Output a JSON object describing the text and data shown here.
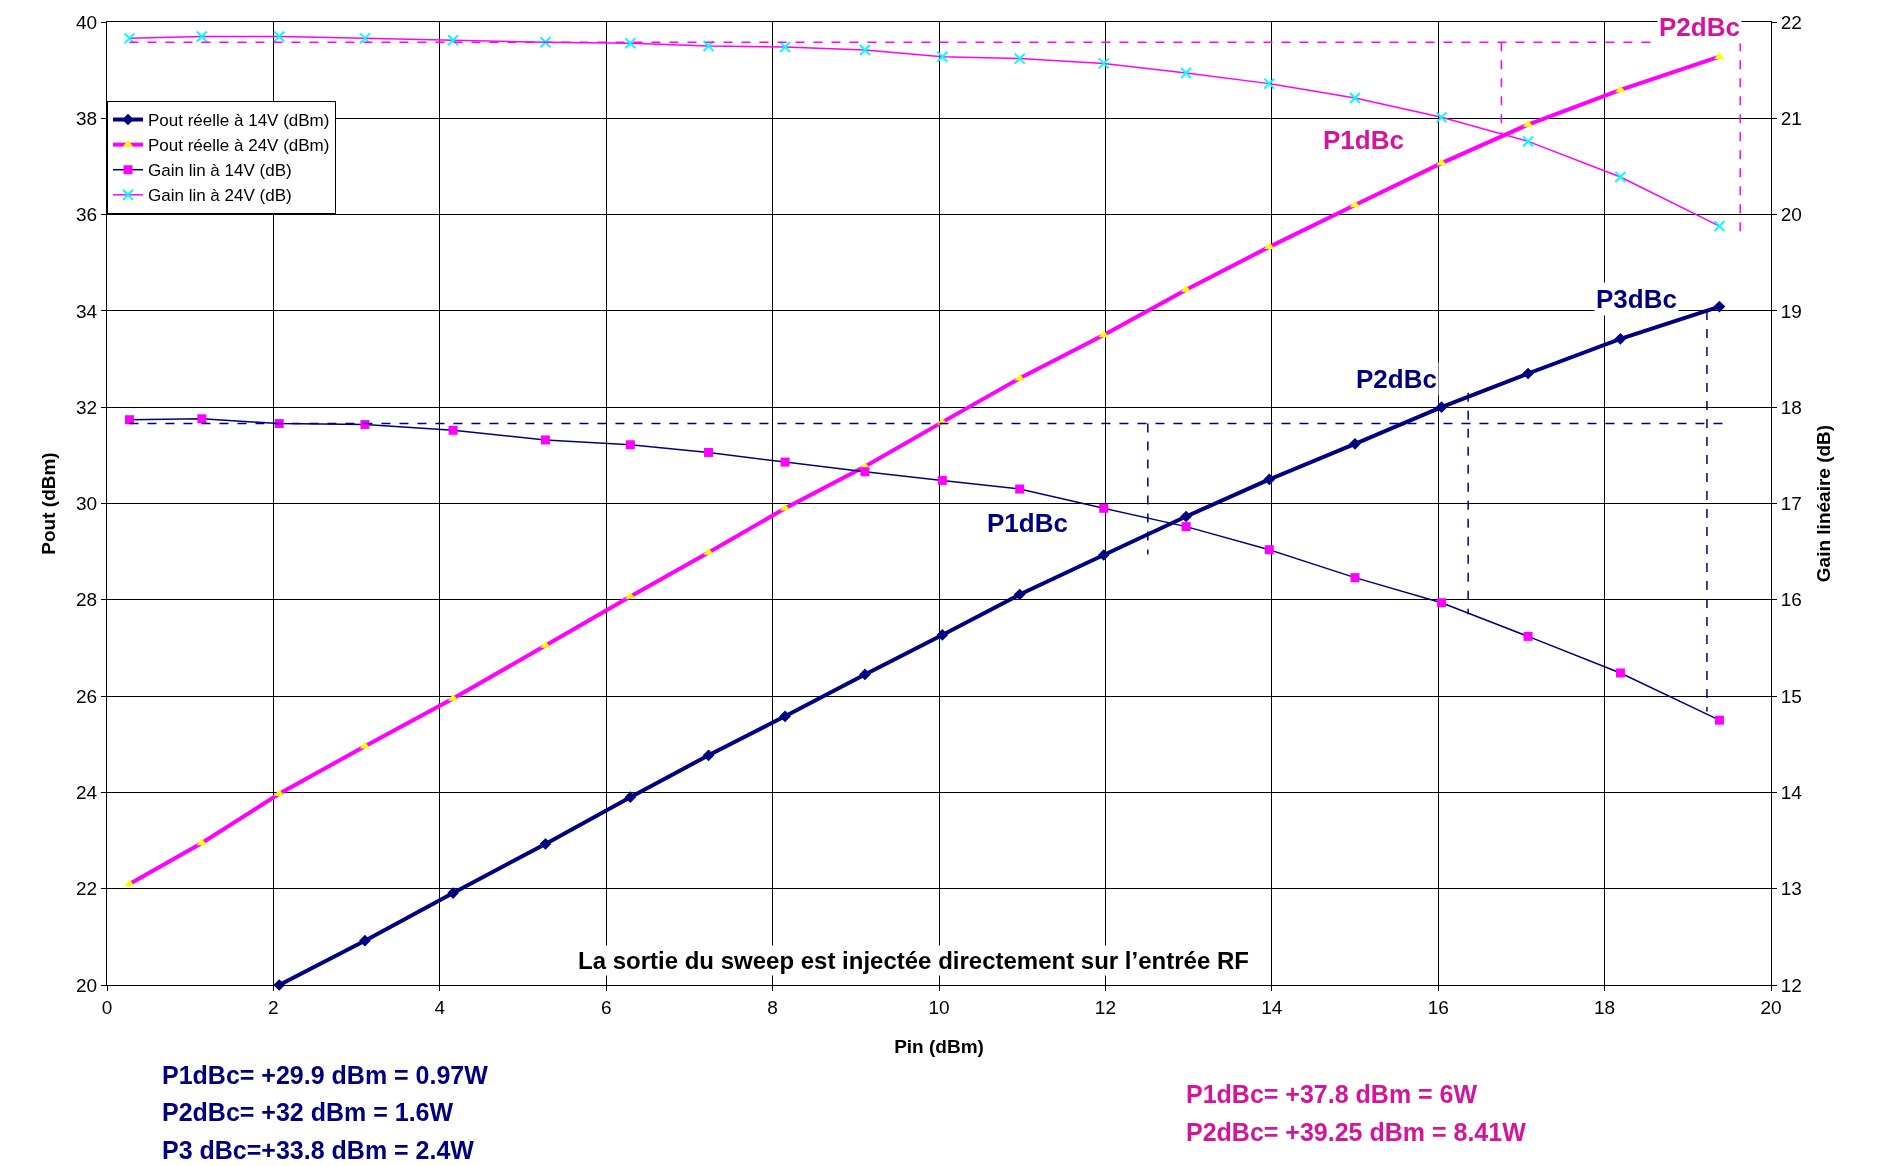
{
  "chart_data": {
    "type": "line",
    "xlabel": "Pin (dBm)",
    "ylabel": "Pout (dBm)",
    "y2label": "Gain linéaire (dB)",
    "x": [
      0.27,
      1.14,
      2.07,
      3.1,
      4.16,
      5.27,
      6.29,
      7.23,
      8.15,
      9.11,
      10.04,
      10.97,
      11.98,
      12.97,
      13.97,
      15.0,
      16.04,
      17.08,
      18.19,
      19.38
    ],
    "series": [
      {
        "name": "Pout réelle à 14V (dBm)",
        "color": "#000080",
        "marker": "diamond",
        "x": [
          2.07,
          3.1,
          4.16,
          5.27,
          6.29,
          7.23,
          8.15,
          9.11,
          10.04,
          10.97,
          11.98,
          12.97,
          13.97,
          15.0,
          16.04,
          17.08,
          18.19,
          19.38
        ],
        "values": [
          20.0,
          20.92,
          21.91,
          22.93,
          23.9,
          24.77,
          25.58,
          26.45,
          27.27,
          28.11,
          28.93,
          29.73,
          30.5,
          31.24,
          32.0,
          32.7,
          33.42,
          34.09
        ]
      },
      {
        "name": "Pout réelle à 24V (dBm)",
        "color": "#ff00ff",
        "marker": "triangle",
        "values": [
          22.1,
          22.95,
          23.97,
          24.96,
          25.95,
          27.05,
          28.07,
          28.98,
          29.9,
          30.77,
          31.69,
          32.6,
          33.5,
          34.44,
          35.33,
          36.2,
          37.07,
          37.87,
          38.59,
          39.28
        ]
      },
      {
        "name": "Gain lin à 14V (dB)",
        "color": "#000080",
        "marker": "square",
        "axis": "y2",
        "values": [
          17.87,
          17.88,
          17.83,
          17.82,
          17.76,
          17.66,
          17.61,
          17.53,
          17.43,
          17.33,
          17.24,
          17.15,
          16.95,
          16.76,
          16.52,
          16.23,
          15.97,
          15.62,
          15.24,
          14.75
        ]
      },
      {
        "name": "Gain lin à 24V (dB)",
        "color": "#ff00ff",
        "marker": "cross",
        "axis": "y2",
        "values": [
          21.83,
          21.85,
          21.85,
          21.83,
          21.81,
          21.79,
          21.78,
          21.75,
          21.74,
          21.71,
          21.64,
          21.62,
          21.57,
          21.47,
          21.36,
          21.21,
          21.01,
          20.76,
          20.39,
          19.88
        ]
      },
      {
        "color": "#000080",
        "axis": "y2",
        "line_style": "dashed",
        "marker": "none",
        "x": [
          0.27,
          19.45
        ],
        "values": [
          17.83,
          17.83
        ]
      },
      {
        "color": "#000080",
        "axis": "y2",
        "line_style": "dashed",
        "marker": "none",
        "x": [
          12.51,
          12.51
        ],
        "values": [
          17.83,
          16.47
        ]
      },
      {
        "color": "#000080",
        "axis": "y2",
        "line_style": "dashed",
        "marker": "none",
        "x": [
          16.36,
          16.36
        ],
        "values": [
          18.15,
          15.85
        ]
      },
      {
        "color": "#000080",
        "axis": "y2",
        "line_style": "dashed",
        "marker": "none",
        "x": [
          19.23,
          19.23
        ],
        "values": [
          19.0,
          14.84
        ]
      },
      {
        "color": "#ff00ff",
        "axis": "y2",
        "line_style": "dashed",
        "marker": "none",
        "x": [
          0.27,
          19.63
        ],
        "values": [
          21.79,
          21.79
        ]
      },
      {
        "color": "#ff00ff",
        "axis": "y2",
        "line_style": "dashed",
        "marker": "none",
        "x": [
          16.76,
          16.76
        ],
        "values": [
          21.79,
          20.81
        ]
      },
      {
        "color": "#ff00ff",
        "axis": "y2",
        "line_style": "dashed",
        "marker": "none",
        "x": [
          19.63,
          19.63
        ],
        "values": [
          21.79,
          19.8
        ]
      }
    ],
    "xlim": [
      0,
      20
    ],
    "xticks": [
      0,
      2,
      4,
      6,
      8,
      10,
      12,
      14,
      16,
      18,
      20
    ],
    "ylim": [
      20,
      40
    ],
    "yticks": [
      20,
      22,
      24,
      26,
      28,
      30,
      32,
      34,
      36,
      38,
      40
    ],
    "y2lim": [
      12,
      22
    ],
    "y2ticks": [
      12,
      13,
      14,
      15,
      16,
      17,
      18,
      19,
      20,
      21,
      22
    ],
    "grid": true,
    "legend": "top left",
    "line_style": "solid",
    "annotations": [
      "La sortie du sweep est injectée directement sur l’entrée RF",
      "P1dBc",
      "P2dBc",
      "P1dBc",
      "P2dBc",
      "P3dBc",
      "P1dBc= +29.9 dBm = 0.97W",
      "P2dBc= +32 dBm = 1.6W",
      "P3 dBc=+33.8 dBm = 2.4W",
      "P1dBc= +37.8 dBm = 6W",
      "P2dBc= +39.25 dBm = 8.41W"
    ]
  }
}
